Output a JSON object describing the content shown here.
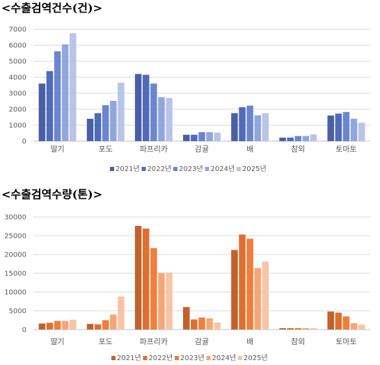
{
  "chart_data": [
    {
      "type": "bar",
      "title": "<수출검역건수(건)>",
      "categories": [
        "딸기",
        "포도",
        "파프리카",
        "감귤",
        "배",
        "참외",
        "토마토"
      ],
      "ylim": [
        0,
        7000
      ],
      "yticks": [
        0,
        1000,
        2000,
        3000,
        4000,
        5000,
        6000,
        7000
      ],
      "grid": true,
      "legend_position": "bottom",
      "series": [
        {
          "name": "2021년",
          "color": "#4a5fa6",
          "values": [
            3600,
            1400,
            4200,
            400,
            1750,
            220,
            1600
          ]
        },
        {
          "name": "2022년",
          "color": "#4e6cb8",
          "values": [
            4380,
            1750,
            4150,
            400,
            2120,
            220,
            1720
          ]
        },
        {
          "name": "2023년",
          "color": "#6a86cf",
          "values": [
            5620,
            2250,
            3600,
            560,
            2220,
            320,
            1820
          ]
        },
        {
          "name": "2024년",
          "color": "#91a6dd",
          "values": [
            6050,
            2520,
            2750,
            560,
            1620,
            320,
            1400
          ]
        },
        {
          "name": "2025년",
          "color": "#b8c4e8",
          "values": [
            6750,
            3650,
            2700,
            530,
            1750,
            420,
            1150
          ]
        }
      ]
    },
    {
      "type": "bar",
      "title": "<수출검역수량(톤)>",
      "categories": [
        "딸기",
        "포도",
        "파프리카",
        "감귤",
        "배",
        "참외",
        "토마토"
      ],
      "ylim": [
        0,
        30000
      ],
      "yticks": [
        0,
        5000,
        10000,
        15000,
        20000,
        25000,
        30000
      ],
      "grid": true,
      "legend_position": "bottom",
      "series": [
        {
          "name": "2021년",
          "color": "#c0622b",
          "values": [
            1600,
            1500,
            27600,
            6000,
            21200,
            350,
            4800
          ]
        },
        {
          "name": "2022년",
          "color": "#dd7030",
          "values": [
            1800,
            1400,
            26900,
            2700,
            25300,
            380,
            4500
          ]
        },
        {
          "name": "2023년",
          "color": "#f07e3c",
          "values": [
            2300,
            2500,
            21700,
            3200,
            24200,
            400,
            3500
          ]
        },
        {
          "name": "2024년",
          "color": "#f6a676",
          "values": [
            2300,
            4000,
            15100,
            3000,
            16400,
            380,
            1700
          ]
        },
        {
          "name": "2025년",
          "color": "#f8c4a6",
          "values": [
            2600,
            8800,
            15200,
            1900,
            18100,
            380,
            1300
          ]
        }
      ]
    }
  ]
}
